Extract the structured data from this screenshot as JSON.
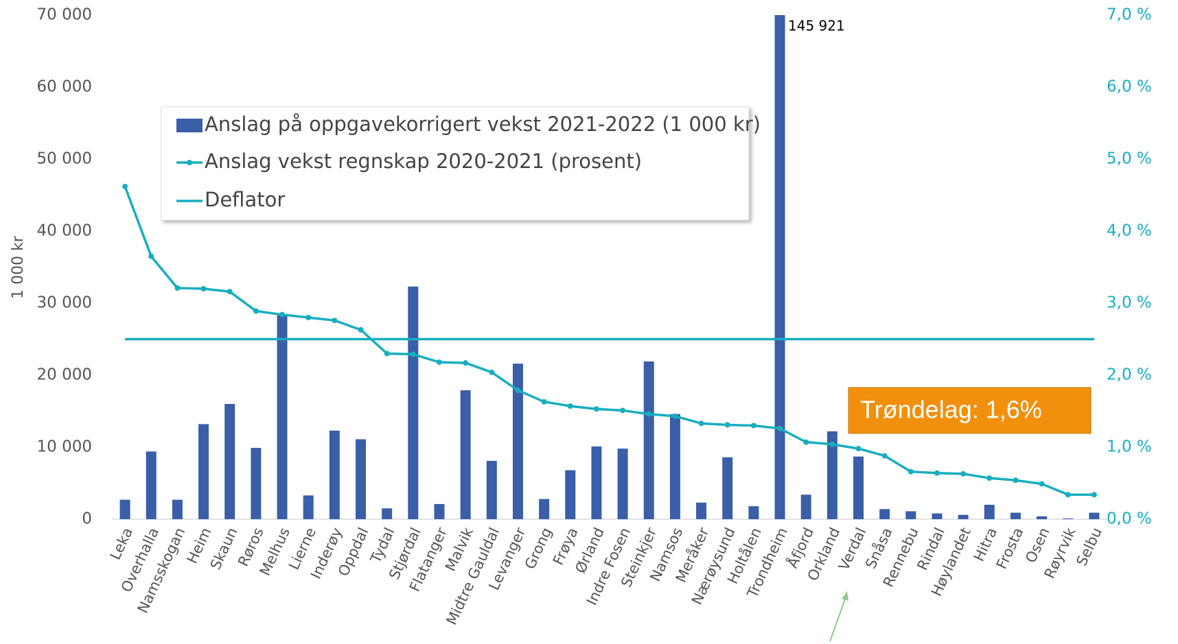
{
  "chart_data": {
    "type": "bar_line",
    "y_label": "1 000 kr",
    "categories": [
      "Leka",
      "Overhalla",
      "Namsskogan",
      "Heim",
      "Skaun",
      "Røros",
      "Melhus",
      "Lierne",
      "Inderøy",
      "Oppdal",
      "Tydal",
      "Stjørdal",
      "Flatanger",
      "Malvik",
      "Midtre Gauldal",
      "Levanger",
      "Grong",
      "Frøya",
      "Ørland",
      "Indre Fosen",
      "Steinkjer",
      "Namsos",
      "Meråker",
      "Nærøysund",
      "Holtålen",
      "Trondheim",
      "Åfjord",
      "Orkland",
      "Verdal",
      "Snåsa",
      "Rennebu",
      "Rindal",
      "Høylandet",
      "Hitra",
      "Frosta",
      "Osen",
      "Røyrvik",
      "Selbu"
    ],
    "series": [
      {
        "name": "Anslag på oppgavekorrigert vekst 2021-2022 (1 000 kr)",
        "type": "bar",
        "color": "#3a5ea8",
        "values": [
          2700,
          9400,
          2700,
          13200,
          16000,
          9900,
          28300,
          3300,
          12300,
          11100,
          1500,
          32300,
          2100,
          17900,
          8100,
          21600,
          2800,
          6800,
          10100,
          9800,
          21900,
          14600,
          2300,
          8600,
          1800,
          145921,
          3400,
          12200,
          8700,
          1400,
          1100,
          800,
          600,
          2000,
          900,
          400,
          100,
          900
        ],
        "value_labels": [
          null,
          null,
          null,
          null,
          null,
          null,
          null,
          null,
          null,
          null,
          null,
          null,
          null,
          null,
          null,
          null,
          null,
          null,
          null,
          null,
          null,
          null,
          null,
          null,
          null,
          "145 921",
          null,
          null,
          null,
          null,
          null,
          null,
          null,
          null,
          null,
          null,
          null,
          null
        ]
      },
      {
        "name": "Anslag vekst regnskap 2020-2021 (prosent)",
        "type": "line",
        "axis": "y2",
        "color": "#17aebf",
        "values": [
          4.62,
          3.65,
          3.21,
          3.2,
          3.16,
          2.89,
          2.84,
          2.8,
          2.76,
          2.63,
          2.3,
          2.29,
          2.18,
          2.17,
          2.04,
          1.79,
          1.63,
          1.57,
          1.53,
          1.51,
          1.46,
          1.43,
          1.33,
          1.31,
          1.3,
          1.26,
          1.07,
          1.04,
          0.98,
          0.88,
          0.66,
          0.64,
          0.63,
          0.57,
          0.54,
          0.49,
          0.34,
          0.34
        ]
      }
    ],
    "deflator": {
      "name": "Deflator",
      "value": 2.5,
      "axis": "y2",
      "color": "#17aebf"
    },
    "annotation": "Trøndelag: 1,6%",
    "ylim": [
      0,
      70000
    ],
    "yticks": [
      {
        "value": 0,
        "label": "0"
      },
      {
        "value": 10000,
        "label": "10 000"
      },
      {
        "value": 20000,
        "label": "20 000"
      },
      {
        "value": 30000,
        "label": "30 000"
      },
      {
        "value": 40000,
        "label": "40 000"
      },
      {
        "value": 50000,
        "label": "50 000"
      },
      {
        "value": 60000,
        "label": "60 000"
      },
      {
        "value": 70000,
        "label": "70 000"
      }
    ],
    "y2lim": [
      0,
      7
    ],
    "y2ticks": [
      {
        "value": 0,
        "label": "0,0 %"
      },
      {
        "value": 1,
        "label": "1,0 %"
      },
      {
        "value": 2,
        "label": "2,0 %"
      },
      {
        "value": 3,
        "label": "3,0 %"
      },
      {
        "value": 4,
        "label": "4,0 %"
      },
      {
        "value": 5,
        "label": "5,0 %"
      },
      {
        "value": 6,
        "label": "6,0 %"
      },
      {
        "value": 7,
        "label": "7,0 %"
      }
    ]
  }
}
